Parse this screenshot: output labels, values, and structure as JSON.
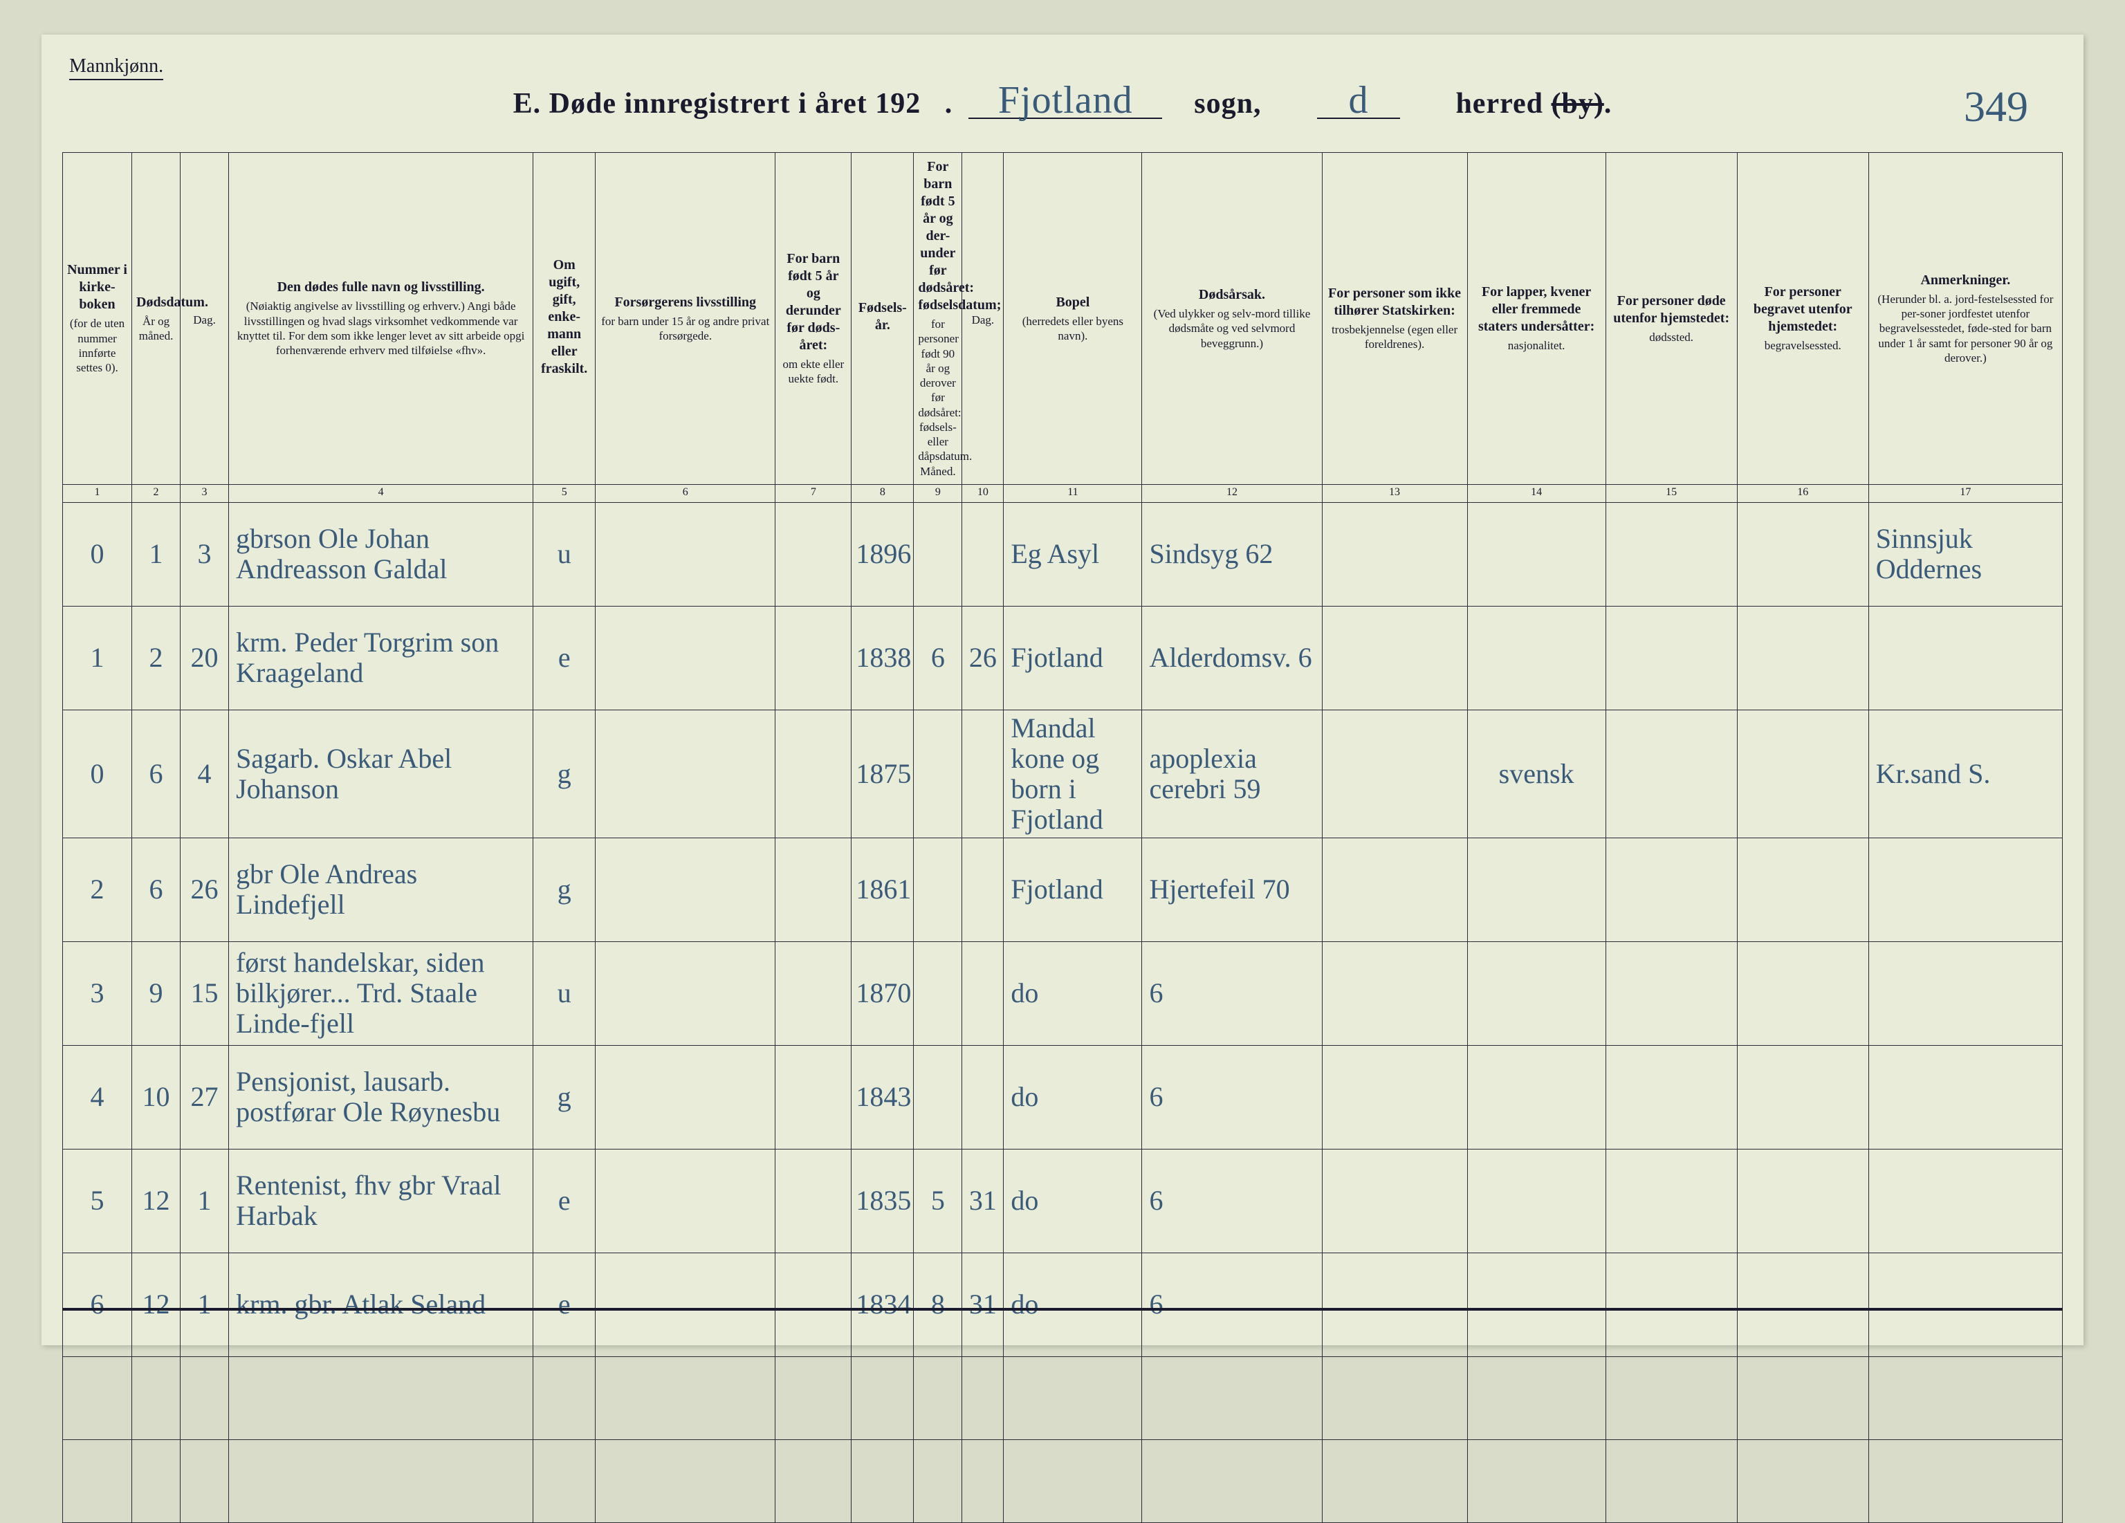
{
  "colors": {
    "page_bg": "#d8dcc8",
    "sheet_bg": "#e8ecd8",
    "ink_print": "#1a1a2e",
    "ink_hand": "#3a5a7a",
    "border": "#2a2a3a"
  },
  "fonts": {
    "printed_family": "Georgia, Times New Roman, serif",
    "handwritten_family": "Brush Script MT, cursive",
    "title_size_pt": 42,
    "header_size_pt": 20,
    "cell_hand_size_pt": 40
  },
  "header": {
    "gender_label": "Mannkjønn.",
    "title_prefix": "E.  Døde innregistrert i året 192",
    "sogn_hand": "Fjotland",
    "sogn_label": "sogn,",
    "herred_hand": "d",
    "herred_label": "herred (by).",
    "herred_strike_part": "(by)",
    "page_number": "349"
  },
  "columns": [
    {
      "num": "1",
      "title": "Nummer i kirke-boken",
      "sub": "(for de uten nummer innførte settes 0)."
    },
    {
      "num": "2",
      "title": "Dødsdatum.",
      "sub": "År og måned."
    },
    {
      "num": "3",
      "title": "",
      "sub": "Dag."
    },
    {
      "num": "4",
      "title": "Den dødes fulle navn og livsstilling.",
      "sub": "(Nøiaktig angivelse av livsstilling og erhverv.) Angi både livsstillingen og hvad slags virksomhet vedkommende var knyttet til. For dem som ikke lenger levet av sitt arbeide opgi forhenværende erhverv med tilføielse «fhv»."
    },
    {
      "num": "5",
      "title": "Om ugift, gift, enke-mann eller fraskilt.",
      "sub": ""
    },
    {
      "num": "6",
      "title": "Forsørgerens livsstilling",
      "sub": "for barn under 15 år og andre privat forsørgede."
    },
    {
      "num": "7",
      "title": "For barn født 5 år og derunder før døds-året:",
      "sub": "om ekte eller uekte født."
    },
    {
      "num": "8",
      "title": "Fødsels-år.",
      "sub": ""
    },
    {
      "num": "9",
      "title": "For barn født 5 år og der-under før dødsåret: fødselsdatum;",
      "sub": "for personer født 90 år og derover før dødsåret: fødsels- eller dåpsdatum. Måned."
    },
    {
      "num": "10",
      "title": "",
      "sub": "Dag."
    },
    {
      "num": "11",
      "title": "Bopel",
      "sub": "(herredets eller byens navn)."
    },
    {
      "num": "12",
      "title": "Dødsårsak.",
      "sub": "(Ved ulykker og selv-mord tillike dødsmåte og ved selvmord beveggrunn.)"
    },
    {
      "num": "13",
      "title": "For personer som ikke tilhører Statskirken:",
      "sub": "trosbekjennelse (egen eller foreldrenes)."
    },
    {
      "num": "14",
      "title": "For lapper, kvener eller fremmede staters undersåtter:",
      "sub": "nasjonalitet."
    },
    {
      "num": "15",
      "title": "For personer døde utenfor hjemstedet:",
      "sub": "dødssted."
    },
    {
      "num": "16",
      "title": "For personer begravet utenfor hjemstedet:",
      "sub": "begravelsessted."
    },
    {
      "num": "17",
      "title": "Anmerkninger.",
      "sub": "(Herunder bl. a. jord-festelsessted for per-soner jordfestet utenfor begravelsesstedet, føde-sted for barn under 1 år samt for personer 90 år og derover.)"
    }
  ],
  "rows": [
    {
      "num": "0",
      "month": "1",
      "day": "3",
      "name": "gbrson Ole Johan Andreasson Galdal",
      "marital": "u",
      "provider": "",
      "child": "",
      "birth_year": "1896",
      "b_m": "",
      "b_d": "",
      "place": "Eg Asyl",
      "cause": "Sindsyg 62",
      "faith": "",
      "nation": "",
      "death_place": "",
      "burial_place": "",
      "remarks": "Sinnsjuk Oddernes"
    },
    {
      "num": "1",
      "month": "2",
      "day": "20",
      "name": "krm. Peder Torgrim son Kraageland",
      "marital": "e",
      "provider": "",
      "child": "",
      "birth_year": "1838",
      "b_m": "6",
      "b_d": "26",
      "place": "Fjotland",
      "cause": "Alderdomsv. 6",
      "faith": "",
      "nation": "",
      "death_place": "",
      "burial_place": "",
      "remarks": ""
    },
    {
      "num": "0",
      "month": "6",
      "day": "4",
      "name": "Sagarb. Oskar Abel Johanson",
      "marital": "g",
      "provider": "",
      "child": "",
      "birth_year": "1875",
      "b_m": "",
      "b_d": "",
      "place": "Mandal kone og born i Fjotland",
      "cause": "apoplexia cerebri 59",
      "faith": "",
      "nation": "svensk",
      "death_place": "",
      "burial_place": "",
      "remarks": "Kr.sand S."
    },
    {
      "num": "2",
      "month": "6",
      "day": "26",
      "name": "gbr Ole Andreas Lindefjell",
      "marital": "g",
      "provider": "",
      "child": "",
      "birth_year": "1861",
      "b_m": "",
      "b_d": "",
      "place": "Fjotland",
      "cause": "Hjertefeil 70",
      "faith": "",
      "nation": "",
      "death_place": "",
      "burial_place": "",
      "remarks": ""
    },
    {
      "num": "3",
      "month": "9",
      "day": "15",
      "name": "først handelskar, siden bilkjører... Trd. Staale Linde-fjell",
      "marital": "u",
      "provider": "",
      "child": "",
      "birth_year": "1870",
      "b_m": "",
      "b_d": "",
      "place": "do",
      "cause": "6",
      "faith": "",
      "nation": "",
      "death_place": "",
      "burial_place": "",
      "remarks": ""
    },
    {
      "num": "4",
      "month": "10",
      "day": "27",
      "name": "Pensjonist, lausarb. postførar Ole Røynesbu",
      "marital": "g",
      "provider": "",
      "child": "",
      "birth_year": "1843",
      "b_m": "",
      "b_d": "",
      "place": "do",
      "cause": "6",
      "faith": "",
      "nation": "",
      "death_place": "",
      "burial_place": "",
      "remarks": ""
    },
    {
      "num": "5",
      "month": "12",
      "day": "1",
      "name": "Rentenist, fhv gbr Vraal Harbak",
      "marital": "e",
      "provider": "",
      "child": "",
      "birth_year": "1835",
      "b_m": "5",
      "b_d": "31",
      "place": "do",
      "cause": "6",
      "faith": "",
      "nation": "",
      "death_place": "",
      "burial_place": "",
      "remarks": ""
    },
    {
      "num": "6",
      "month": "12",
      "day": "1",
      "name": "krm. gbr. Atlak Seland",
      "marital": "e",
      "provider": "",
      "child": "",
      "birth_year": "1834",
      "b_m": "8",
      "b_d": "31",
      "place": "do",
      "cause": "6",
      "faith": "",
      "nation": "",
      "death_place": "",
      "burial_place": "",
      "remarks": ""
    }
  ],
  "empty_rows": 2
}
